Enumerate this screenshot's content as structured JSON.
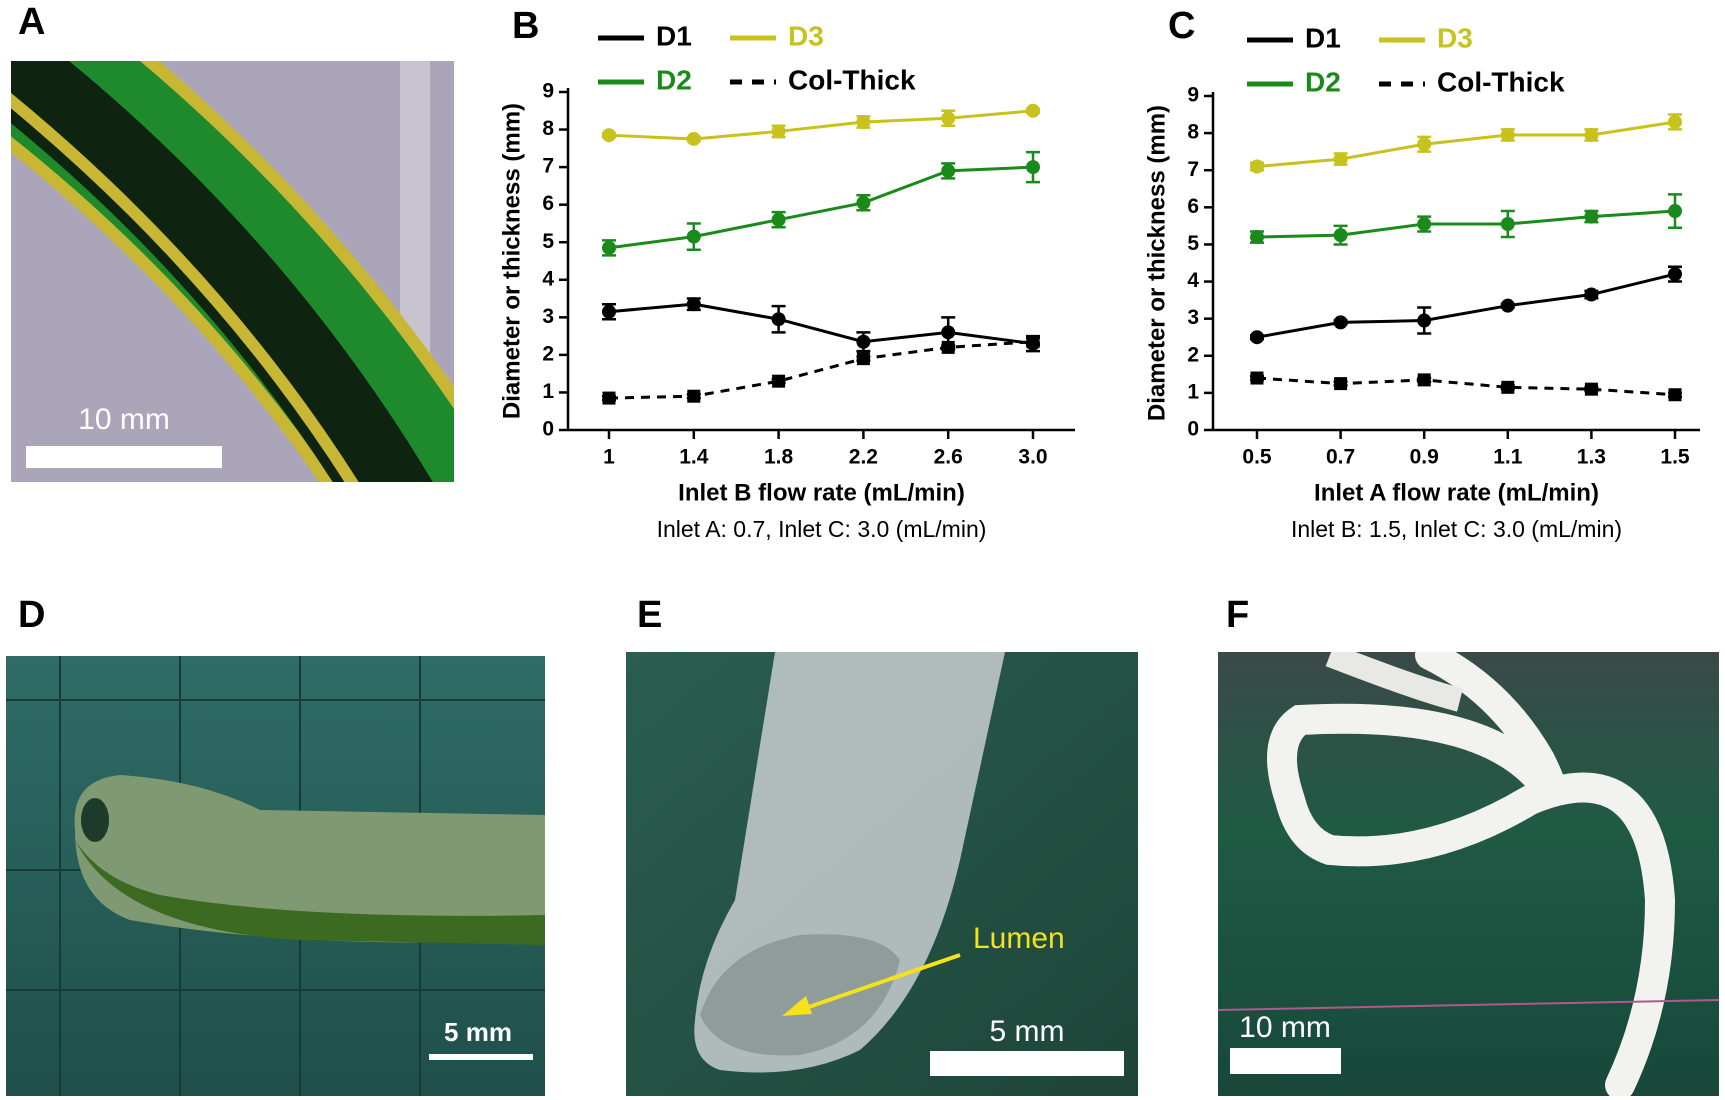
{
  "chart_data": [
    {
      "type": "line",
      "panel": "B",
      "xlabel": "Inlet B flow rate (mL/min)",
      "ylabel": "Diameter or thickness (mm)",
      "note": "Inlet A: 0.7, Inlet C: 3.0 (mL/min)",
      "categories": [
        "1",
        "1.4",
        "1.8",
        "2.2",
        "2.6",
        "3.0"
      ],
      "ylim": [
        0,
        9
      ],
      "yticks": [
        0,
        1,
        2,
        3,
        4,
        5,
        6,
        7,
        8,
        9
      ],
      "series": [
        {
          "name": "D1",
          "color": "#000000",
          "values": [
            3.15,
            3.35,
            2.95,
            2.35,
            2.6,
            2.3
          ],
          "errors": [
            0.2,
            0.15,
            0.35,
            0.25,
            0.4,
            0.2
          ],
          "dashed": false,
          "marker": "circle"
        },
        {
          "name": "D2",
          "color": "#1a8a1a",
          "values": [
            4.85,
            5.15,
            5.6,
            6.05,
            6.9,
            7.0
          ],
          "errors": [
            0.2,
            0.35,
            0.2,
            0.2,
            0.2,
            0.4
          ],
          "dashed": false,
          "marker": "circle"
        },
        {
          "name": "D3",
          "color": "#c8c21e",
          "values": [
            7.85,
            7.75,
            7.95,
            8.2,
            8.3,
            8.5
          ],
          "errors": [
            0.05,
            0.05,
            0.15,
            0.15,
            0.2,
            0.05
          ],
          "dashed": false,
          "marker": "circle"
        },
        {
          "name": "Col-Thick",
          "color": "#000000",
          "values": [
            0.85,
            0.9,
            1.3,
            1.9,
            2.2,
            2.35
          ],
          "errors": [
            0.05,
            0.05,
            0.05,
            0.05,
            0.05,
            0.1
          ],
          "dashed": true,
          "marker": "square"
        }
      ]
    },
    {
      "type": "line",
      "panel": "C",
      "xlabel": "Inlet A flow rate (mL/min)",
      "ylabel": "Diameter or thickness (mm)",
      "note": "Inlet B: 1.5, Inlet C: 3.0 (mL/min)",
      "categories": [
        "0.5",
        "0.7",
        "0.9",
        "1.1",
        "1.3",
        "1.5"
      ],
      "ylim": [
        0,
        9
      ],
      "yticks": [
        0,
        1,
        2,
        3,
        4,
        5,
        6,
        7,
        8,
        9
      ],
      "series": [
        {
          "name": "D1",
          "color": "#000000",
          "values": [
            2.5,
            2.9,
            2.95,
            3.35,
            3.65,
            4.2
          ],
          "errors": [
            0.05,
            0.05,
            0.35,
            0.05,
            0.1,
            0.2
          ],
          "dashed": false,
          "marker": "circle"
        },
        {
          "name": "D2",
          "color": "#1a8a1a",
          "values": [
            5.2,
            5.25,
            5.55,
            5.55,
            5.75,
            5.9
          ],
          "errors": [
            0.15,
            0.25,
            0.2,
            0.35,
            0.15,
            0.45
          ],
          "dashed": false,
          "marker": "circle"
        },
        {
          "name": "D3",
          "color": "#c8c21e",
          "values": [
            7.1,
            7.3,
            7.7,
            7.95,
            7.95,
            8.3
          ],
          "errors": [
            0.1,
            0.15,
            0.2,
            0.15,
            0.15,
            0.2
          ],
          "dashed": false,
          "marker": "circle"
        },
        {
          "name": "Col-Thick",
          "color": "#000000",
          "values": [
            1.4,
            1.25,
            1.35,
            1.15,
            1.1,
            0.95
          ],
          "errors": [
            0.05,
            0.05,
            0.05,
            0.05,
            0.05,
            0.05
          ],
          "dashed": true,
          "marker": "square"
        }
      ]
    }
  ],
  "photos": [
    {
      "panel": "A",
      "scale_bar": "10 mm"
    },
    {
      "panel": "D",
      "scale_bar": "5 mm"
    },
    {
      "panel": "E",
      "scale_bar": "5 mm",
      "annotation": "Lumen"
    },
    {
      "panel": "F",
      "scale_bar": "10 mm"
    }
  ]
}
